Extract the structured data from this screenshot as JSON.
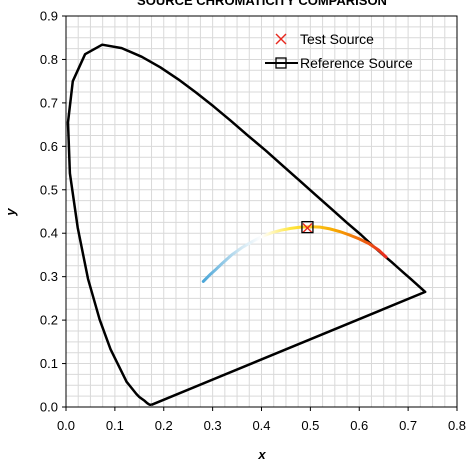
{
  "chart_data": {
    "type": "scatter",
    "title": "SOURCE CHROMATICITY COMPARISON",
    "xlabel": "x",
    "ylabel": "y",
    "xlim": [
      0,
      0.8
    ],
    "ylim": [
      0,
      0.9
    ],
    "xticks": [
      "0.0",
      "0.1",
      "0.2",
      "0.3",
      "0.4",
      "0.5",
      "0.6",
      "0.7",
      "0.8"
    ],
    "yticks": [
      "0.0",
      "0.1",
      "0.2",
      "0.3",
      "0.4",
      "0.5",
      "0.6",
      "0.7",
      "0.8",
      "0.9"
    ],
    "grid": true,
    "legend_position": "top-right",
    "series": [
      {
        "name": "Test Source",
        "marker": "x",
        "color": "#e8281e",
        "points": [
          [
            0.494,
            0.412
          ]
        ]
      },
      {
        "name": "Reference Source",
        "marker": "square",
        "color": "#000000",
        "points": [
          [
            0.494,
            0.414
          ]
        ]
      }
    ],
    "spectral_locus": [
      [
        0.175,
        0.005
      ],
      [
        0.174,
        0.005
      ],
      [
        0.172,
        0.005
      ],
      [
        0.17,
        0.006
      ],
      [
        0.166,
        0.009
      ],
      [
        0.161,
        0.014
      ],
      [
        0.15,
        0.023
      ],
      [
        0.144,
        0.03
      ],
      [
        0.124,
        0.058
      ],
      [
        0.091,
        0.133
      ],
      [
        0.069,
        0.201
      ],
      [
        0.045,
        0.295
      ],
      [
        0.024,
        0.413
      ],
      [
        0.008,
        0.538
      ],
      [
        0.004,
        0.655
      ],
      [
        0.014,
        0.75
      ],
      [
        0.039,
        0.812
      ],
      [
        0.074,
        0.834
      ],
      [
        0.114,
        0.826
      ],
      [
        0.155,
        0.806
      ],
      [
        0.193,
        0.782
      ],
      [
        0.23,
        0.754
      ],
      [
        0.266,
        0.724
      ],
      [
        0.302,
        0.692
      ],
      [
        0.337,
        0.659
      ],
      [
        0.373,
        0.624
      ],
      [
        0.409,
        0.59
      ],
      [
        0.444,
        0.555
      ],
      [
        0.479,
        0.52
      ],
      [
        0.512,
        0.487
      ],
      [
        0.544,
        0.455
      ],
      [
        0.575,
        0.424
      ],
      [
        0.603,
        0.397
      ],
      [
        0.627,
        0.372
      ],
      [
        0.648,
        0.351
      ],
      [
        0.666,
        0.334
      ],
      [
        0.68,
        0.32
      ],
      [
        0.691,
        0.309
      ],
      [
        0.701,
        0.299
      ],
      [
        0.708,
        0.292
      ],
      [
        0.735,
        0.265
      ]
    ],
    "planckian_locus": [
      [
        0.281,
        0.289
      ],
      [
        0.287,
        0.296
      ],
      [
        0.295,
        0.305
      ],
      [
        0.306,
        0.316
      ],
      [
        0.32,
        0.331
      ],
      [
        0.339,
        0.35
      ],
      [
        0.36,
        0.367
      ],
      [
        0.38,
        0.38
      ],
      [
        0.4,
        0.392
      ],
      [
        0.42,
        0.401
      ],
      [
        0.44,
        0.407
      ],
      [
        0.46,
        0.411
      ],
      [
        0.48,
        0.414
      ],
      [
        0.5,
        0.415
      ],
      [
        0.52,
        0.414
      ],
      [
        0.54,
        0.41
      ],
      [
        0.56,
        0.404
      ],
      [
        0.58,
        0.396
      ],
      [
        0.6,
        0.387
      ],
      [
        0.62,
        0.376
      ],
      [
        0.64,
        0.361
      ],
      [
        0.655,
        0.345
      ]
    ],
    "planckian_gradient_colors": [
      "#4aa6d8",
      "#cfe6f2",
      "#ffffff",
      "#ffe63c",
      "#f7a800",
      "#e8281e"
    ],
    "line_color": "#000000",
    "grid_color": "#d9d9d9"
  }
}
